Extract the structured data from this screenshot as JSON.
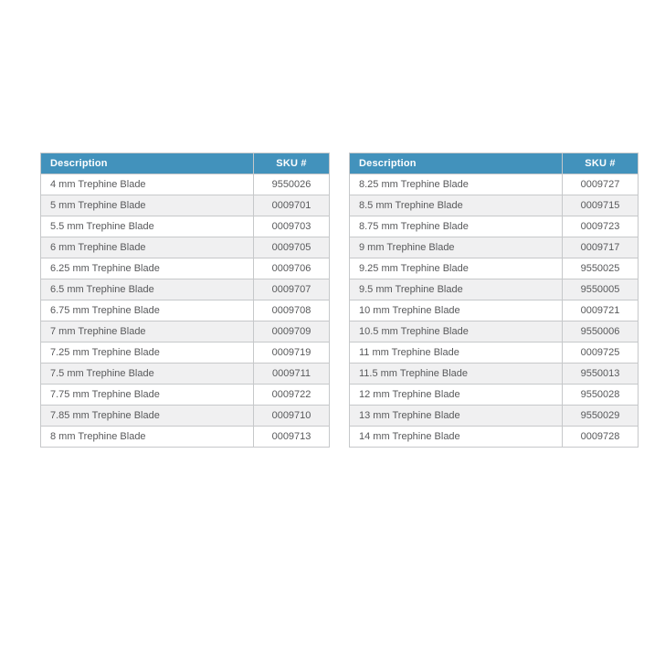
{
  "page": {
    "background": "#ffffff"
  },
  "colors": {
    "header_bg": "#4292bc",
    "header_text": "#ffffff",
    "row_bg": "#ffffff",
    "row_alt_bg": "#f0f0f1",
    "inner_border": "#c6c8ca",
    "outer_border": "#97999b",
    "body_text": "#58595b"
  },
  "tables": [
    {
      "columns": [
        "Description",
        "SKU #"
      ],
      "rows": [
        {
          "description": "4 mm Trephine Blade",
          "sku": "9550026"
        },
        {
          "description": "5 mm Trephine Blade",
          "sku": "0009701"
        },
        {
          "description": "5.5 mm Trephine Blade",
          "sku": "0009703"
        },
        {
          "description": "6 mm Trephine Blade",
          "sku": "0009705"
        },
        {
          "description": "6.25 mm Trephine Blade",
          "sku": "0009706"
        },
        {
          "description": "6.5 mm Trephine Blade",
          "sku": "0009707"
        },
        {
          "description": "6.75 mm Trephine Blade",
          "sku": "0009708"
        },
        {
          "description": "7 mm Trephine Blade",
          "sku": "0009709"
        },
        {
          "description": "7.25 mm Trephine Blade",
          "sku": "0009719"
        },
        {
          "description": "7.5 mm Trephine Blade",
          "sku": "0009711"
        },
        {
          "description": "7.75 mm Trephine Blade",
          "sku": "0009722"
        },
        {
          "description": "7.85 mm Trephine Blade",
          "sku": "0009710"
        },
        {
          "description": "8 mm Trephine Blade",
          "sku": "0009713"
        }
      ]
    },
    {
      "columns": [
        "Description",
        "SKU #"
      ],
      "rows": [
        {
          "description": "8.25 mm Trephine Blade",
          "sku": "0009727"
        },
        {
          "description": "8.5 mm Trephine Blade",
          "sku": "0009715"
        },
        {
          "description": "8.75 mm Trephine Blade",
          "sku": "0009723"
        },
        {
          "description": "9 mm Trephine Blade",
          "sku": "0009717"
        },
        {
          "description": "9.25 mm Trephine Blade",
          "sku": "9550025"
        },
        {
          "description": "9.5 mm Trephine Blade",
          "sku": "9550005"
        },
        {
          "description": "10 mm Trephine Blade",
          "sku": "0009721"
        },
        {
          "description": "10.5 mm Trephine Blade",
          "sku": "9550006"
        },
        {
          "description": "11 mm Trephine Blade",
          "sku": "0009725"
        },
        {
          "description": "11.5 mm Trephine Blade",
          "sku": "9550013"
        },
        {
          "description": "12 mm Trephine Blade",
          "sku": "9550028"
        },
        {
          "description": "13 mm Trephine Blade",
          "sku": "9550029"
        },
        {
          "description": "14 mm Trephine Blade",
          "sku": "0009728"
        }
      ]
    }
  ]
}
